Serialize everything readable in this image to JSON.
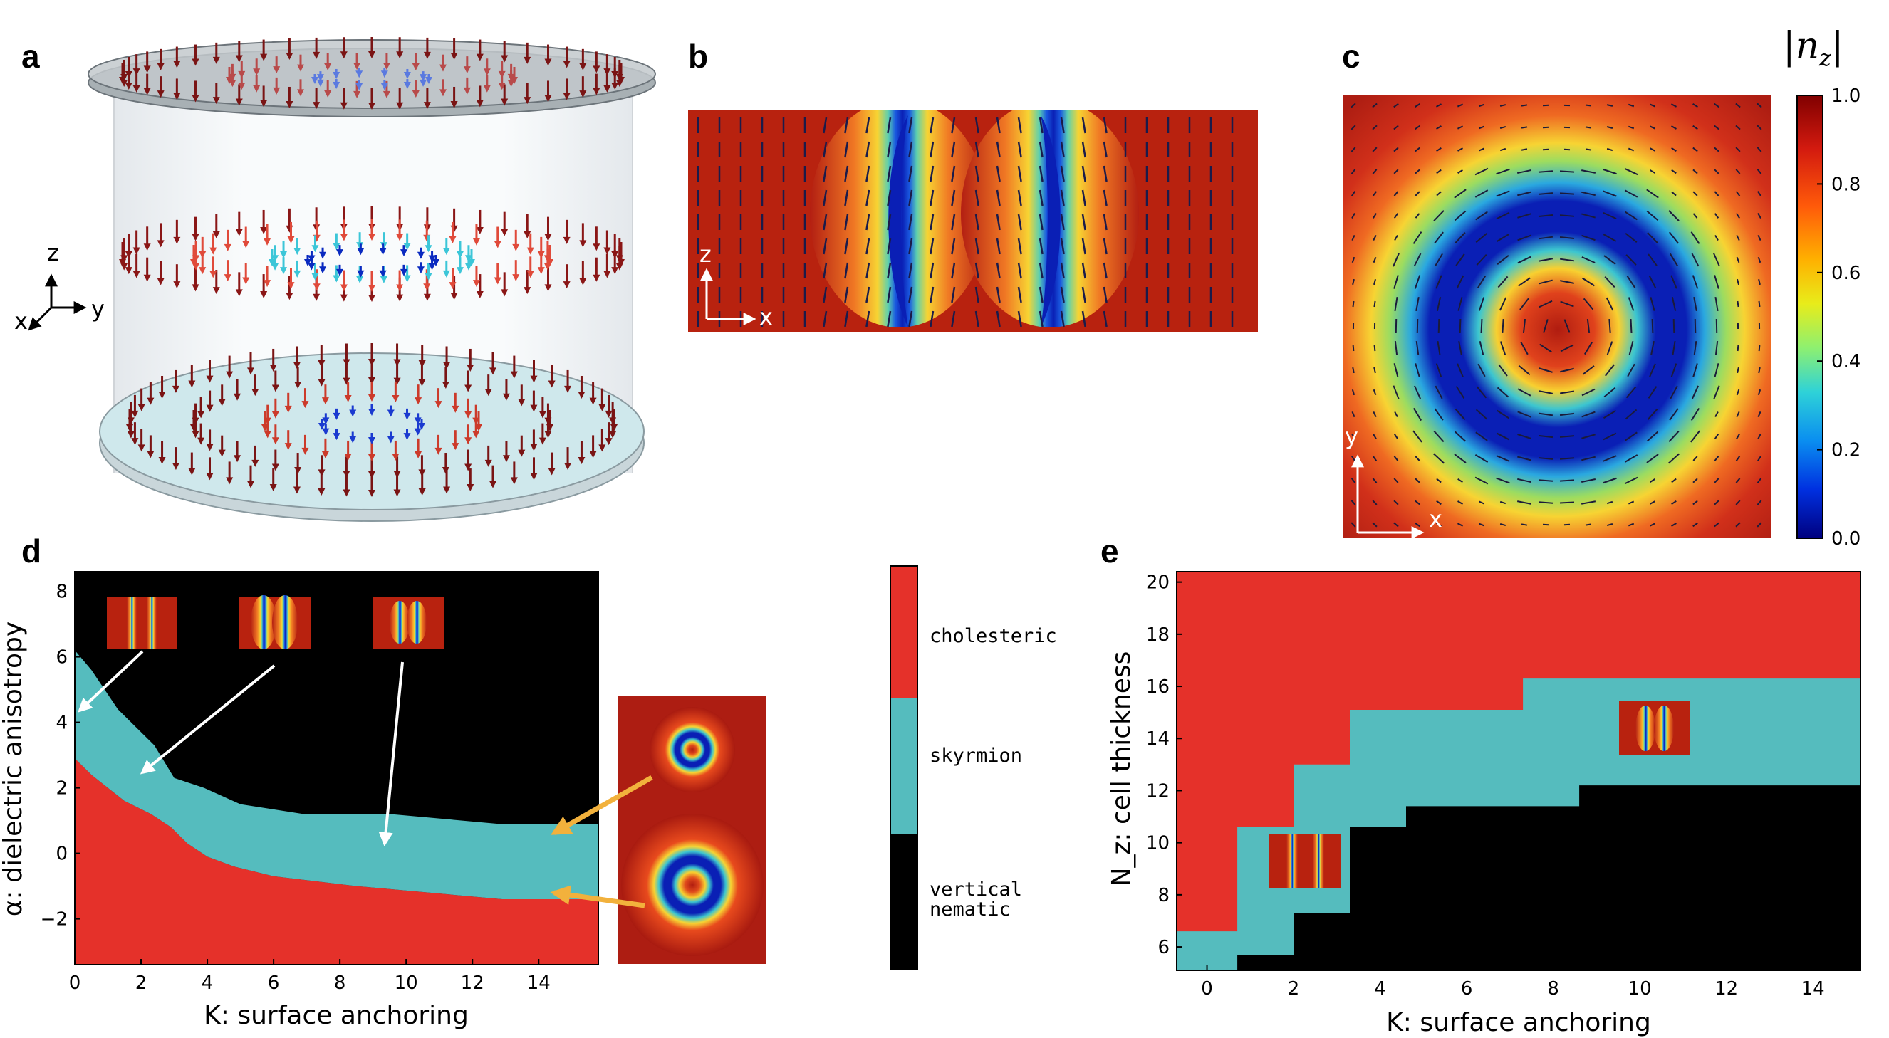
{
  "panel_labels": {
    "a": "a",
    "b": "b",
    "c": "c",
    "d": "d",
    "e": "e"
  },
  "axes_text": {
    "x": "x",
    "y": "y",
    "z": "z"
  },
  "colors": {
    "cholesteric": "#e5312a",
    "skyrmion": "#55bcbe",
    "vertical_nematic": "#000000",
    "field_high": "#b01c10",
    "field_low": "#0a1fb5",
    "arrow_yellow": "#f2b13c"
  },
  "colorbar": {
    "title": "|n_z|",
    "ticks": [
      "1.0",
      "0.8",
      "0.6",
      "0.4",
      "0.2",
      "0.0"
    ],
    "values": [
      1.0,
      0.8,
      0.6,
      0.4,
      0.2,
      0.0
    ]
  },
  "legend": {
    "items": [
      {
        "label": "cholesteric",
        "color": "#e5312a"
      },
      {
        "label": "skyrmion",
        "color": "#55bcbe"
      },
      {
        "label": "vertical",
        "label2": "nematic",
        "color": "#000000"
      }
    ]
  },
  "chart_data": [
    {
      "panel": "d",
      "type": "heatmap",
      "xlabel": "K: surface anchoring",
      "ylabel": "α: dielectric anisotropy",
      "xlim": [
        0,
        15.8
      ],
      "ylim": [
        -3.4,
        8.6
      ],
      "xticks": [
        0,
        2,
        4,
        6,
        8,
        10,
        12,
        14
      ],
      "yticks": [
        8,
        6,
        4,
        2,
        0,
        -2
      ],
      "ytick_labels": [
        "8",
        "6",
        "4",
        "2",
        "0",
        "−2"
      ],
      "regions": [
        {
          "phase": "vertical nematic",
          "location": "upper region"
        },
        {
          "phase": "skyrmion",
          "location": "diagonal band"
        },
        {
          "phase": "cholesteric",
          "location": "lower region"
        }
      ],
      "skyrmion_upper_boundary": [
        [
          0,
          6.2
        ],
        [
          0.5,
          5.6
        ],
        [
          0.9,
          5.0
        ],
        [
          1.3,
          4.4
        ],
        [
          1.8,
          3.9
        ],
        [
          2.4,
          3.3
        ],
        [
          3.0,
          2.3
        ],
        [
          3.9,
          2.0
        ],
        [
          5.0,
          1.5
        ],
        [
          6.9,
          1.2
        ],
        [
          9.5,
          1.2
        ],
        [
          12.8,
          0.9
        ],
        [
          15.8,
          0.9
        ]
      ],
      "skyrmion_lower_boundary": [
        [
          0,
          2.9
        ],
        [
          0.5,
          2.4
        ],
        [
          1.0,
          2.0
        ],
        [
          1.5,
          1.6
        ],
        [
          2.3,
          1.2
        ],
        [
          2.9,
          0.8
        ],
        [
          3.4,
          0.3
        ],
        [
          4.0,
          -0.1
        ],
        [
          4.8,
          -0.4
        ],
        [
          6.0,
          -0.7
        ],
        [
          8.5,
          -1.0
        ],
        [
          12.9,
          -1.4
        ],
        [
          15.8,
          -1.4
        ]
      ]
    },
    {
      "panel": "e",
      "type": "heatmap",
      "xlabel": "K: surface anchoring",
      "ylabel": "N_z: cell thickness",
      "xlim": [
        -0.7,
        15.1
      ],
      "ylim": [
        5.1,
        20.4
      ],
      "xticks": [
        0,
        2,
        4,
        6,
        8,
        10,
        12,
        14
      ],
      "yticks": [
        20,
        18,
        16,
        14,
        12,
        10,
        8,
        6
      ],
      "regions": [
        {
          "phase": "cholesteric",
          "location": "upper region"
        },
        {
          "phase": "skyrmion",
          "location": "stepped band"
        },
        {
          "phase": "vertical nematic",
          "location": "lower region"
        }
      ],
      "skyrmion_upper_boundary": [
        [
          -0.7,
          6.6
        ],
        [
          0.7,
          6.6
        ],
        [
          0.7,
          10.6
        ],
        [
          2.0,
          10.6
        ],
        [
          2.0,
          13.0
        ],
        [
          3.3,
          13.0
        ],
        [
          3.3,
          15.1
        ],
        [
          7.3,
          15.1
        ],
        [
          7.3,
          16.3
        ],
        [
          15.1,
          16.3
        ]
      ],
      "skyrmion_lower_boundary": [
        [
          -0.7,
          5.1
        ],
        [
          0.7,
          5.1
        ],
        [
          0.7,
          5.7
        ],
        [
          2.0,
          5.7
        ],
        [
          2.0,
          7.3
        ],
        [
          3.3,
          7.3
        ],
        [
          3.3,
          10.6
        ],
        [
          4.6,
          10.6
        ],
        [
          4.6,
          11.4
        ],
        [
          8.6,
          11.4
        ],
        [
          8.6,
          12.2
        ],
        [
          15.1,
          12.2
        ]
      ]
    }
  ]
}
